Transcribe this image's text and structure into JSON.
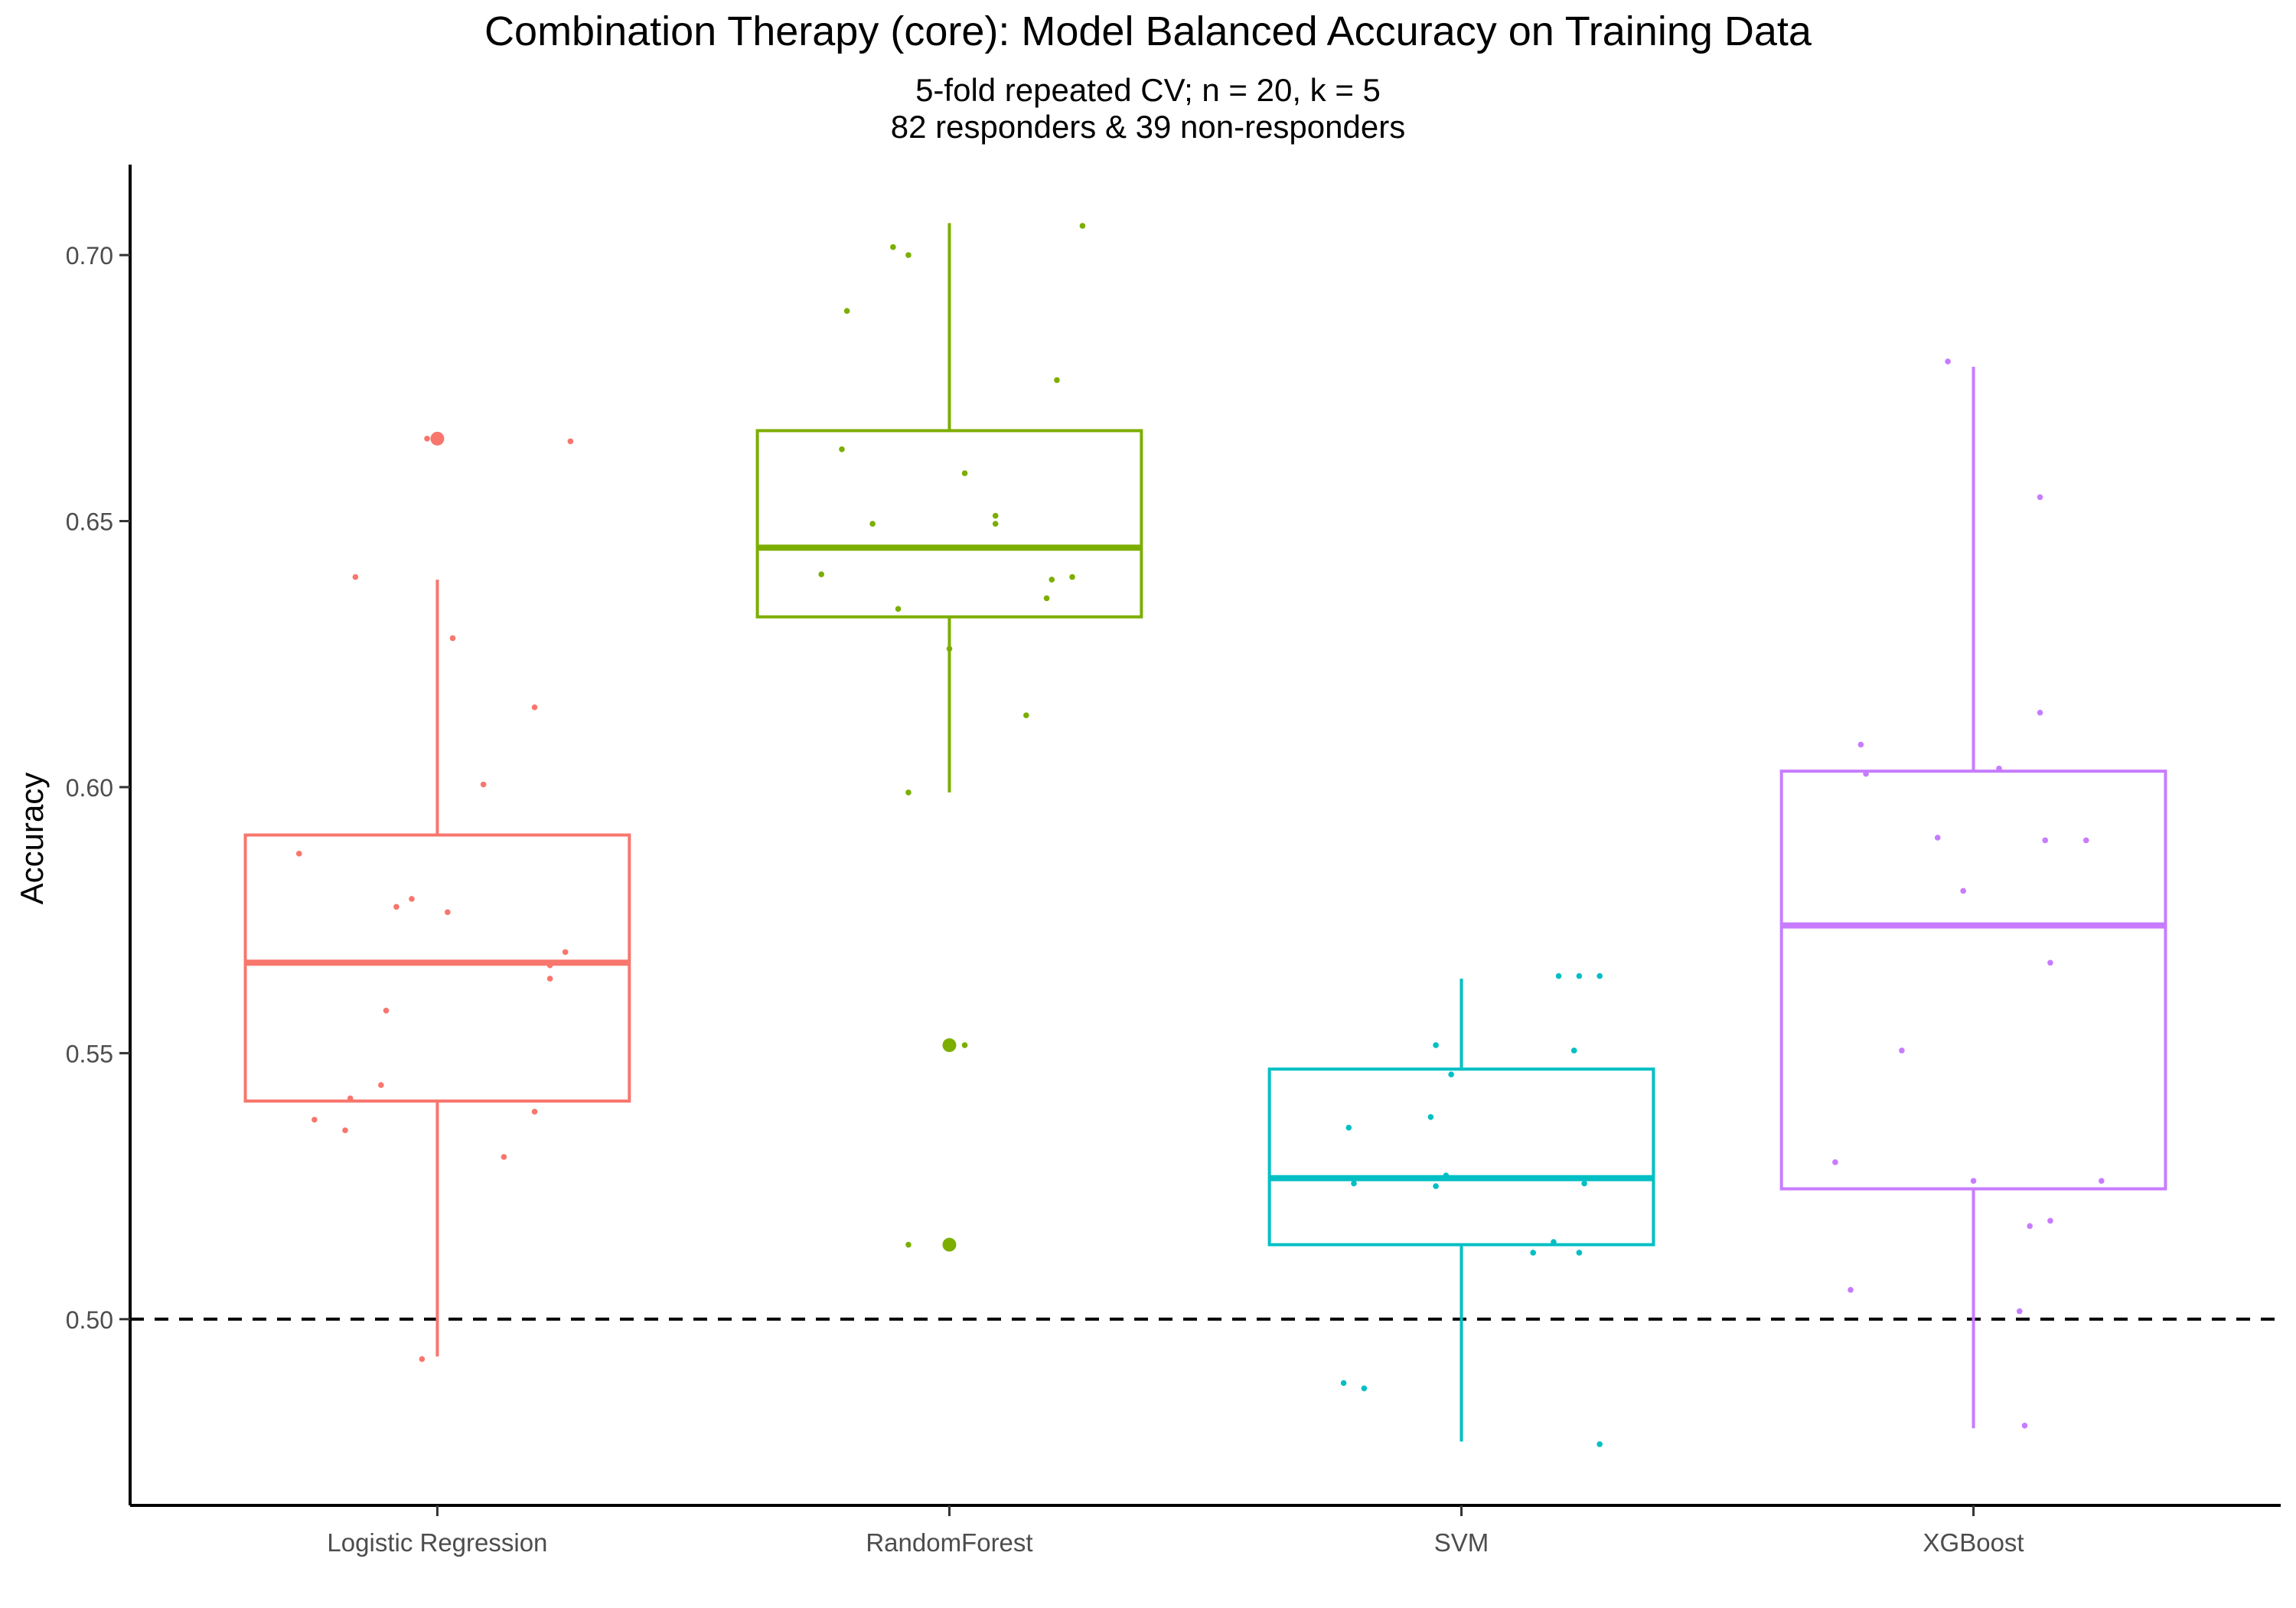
{
  "chart_data": {
    "type": "box",
    "title": "Combination Therapy (core): Model Balanced Accuracy on Training Data",
    "subtitle_lines": [
      "5-fold repeated CV; n = 20, k = 5",
      "82 responders & 39 non-responders"
    ],
    "xlabel": "",
    "ylabel": "Accuracy",
    "ylim": [
      0.465,
      0.717
    ],
    "yticks": [
      0.5,
      0.55,
      0.6,
      0.65,
      0.7
    ],
    "ytick_labels": [
      "0.50",
      "0.55",
      "0.60",
      "0.65",
      "0.70"
    ],
    "reference_line": {
      "y": 0.5,
      "style": "dashed",
      "color": "#000000"
    },
    "grid": false,
    "legend": "none",
    "categories": [
      "Logistic Regression",
      "RandomForest",
      "SVM",
      "XGBoost"
    ],
    "series": [
      {
        "category": "Logistic Regression",
        "color": "#F8766D",
        "box": {
          "whisker_low": 0.493,
          "q1": 0.541,
          "median": 0.567,
          "q3": 0.591,
          "whisker_high": 0.639
        },
        "outliers": [
          0.6655
        ],
        "points": [
          {
            "jitter": -0.02,
            "y": 0.6655
          },
          {
            "jitter": 0.26,
            "y": 0.665
          },
          {
            "jitter": -0.16,
            "y": 0.6395
          },
          {
            "jitter": 0.03,
            "y": 0.628
          },
          {
            "jitter": 0.19,
            "y": 0.615
          },
          {
            "jitter": 0.09,
            "y": 0.6005
          },
          {
            "jitter": -0.27,
            "y": 0.5875
          },
          {
            "jitter": -0.05,
            "y": 0.579
          },
          {
            "jitter": -0.08,
            "y": 0.5775
          },
          {
            "jitter": 0.02,
            "y": 0.5765
          },
          {
            "jitter": 0.25,
            "y": 0.569
          },
          {
            "jitter": 0.22,
            "y": 0.5665
          },
          {
            "jitter": 0.22,
            "y": 0.564
          },
          {
            "jitter": -0.1,
            "y": 0.558
          },
          {
            "jitter": -0.11,
            "y": 0.544
          },
          {
            "jitter": -0.17,
            "y": 0.5415
          },
          {
            "jitter": 0.19,
            "y": 0.539
          },
          {
            "jitter": -0.24,
            "y": 0.5375
          },
          {
            "jitter": -0.18,
            "y": 0.5355
          },
          {
            "jitter": 0.13,
            "y": 0.5305
          },
          {
            "jitter": -0.03,
            "y": 0.4925
          }
        ]
      },
      {
        "category": "RandomForest",
        "color": "#7CAE00",
        "box": {
          "whisker_low": 0.599,
          "q1": 0.632,
          "median": 0.645,
          "q3": 0.667,
          "whisker_high": 0.706
        },
        "outliers": [
          0.5515,
          0.514
        ],
        "points": [
          {
            "jitter": 0.26,
            "y": 0.7055
          },
          {
            "jitter": -0.11,
            "y": 0.7015
          },
          {
            "jitter": -0.08,
            "y": 0.7
          },
          {
            "jitter": -0.2,
            "y": 0.6895
          },
          {
            "jitter": 0.21,
            "y": 0.6765
          },
          {
            "jitter": -0.21,
            "y": 0.6635
          },
          {
            "jitter": 0.03,
            "y": 0.659
          },
          {
            "jitter": 0.09,
            "y": 0.651
          },
          {
            "jitter": 0.09,
            "y": 0.6495
          },
          {
            "jitter": -0.15,
            "y": 0.6495
          },
          {
            "jitter": -0.25,
            "y": 0.64
          },
          {
            "jitter": 0.24,
            "y": 0.6395
          },
          {
            "jitter": 0.2,
            "y": 0.639
          },
          {
            "jitter": 0.19,
            "y": 0.6355
          },
          {
            "jitter": -0.1,
            "y": 0.6335
          },
          {
            "jitter": 0.0,
            "y": 0.626
          },
          {
            "jitter": 0.15,
            "y": 0.6135
          },
          {
            "jitter": -0.08,
            "y": 0.599
          },
          {
            "jitter": 0.03,
            "y": 0.5515
          },
          {
            "jitter": 0.0,
            "y": 0.5515
          },
          {
            "jitter": -0.08,
            "y": 0.514
          },
          {
            "jitter": 0.0,
            "y": 0.514
          }
        ]
      },
      {
        "category": "SVM",
        "color": "#00BFC4",
        "box": {
          "whisker_low": 0.477,
          "q1": 0.514,
          "median": 0.5265,
          "q3": 0.547,
          "whisker_high": 0.564
        },
        "outliers": [],
        "points": [
          {
            "jitter": 0.19,
            "y": 0.5645
          },
          {
            "jitter": 0.23,
            "y": 0.5645
          },
          {
            "jitter": 0.27,
            "y": 0.5645
          },
          {
            "jitter": -0.05,
            "y": 0.5515
          },
          {
            "jitter": 0.22,
            "y": 0.5505
          },
          {
            "jitter": -0.02,
            "y": 0.546
          },
          {
            "jitter": -0.06,
            "y": 0.538
          },
          {
            "jitter": -0.22,
            "y": 0.536
          },
          {
            "jitter": -0.03,
            "y": 0.527
          },
          {
            "jitter": 0.15,
            "y": 0.5265
          },
          {
            "jitter": -0.21,
            "y": 0.5255
          },
          {
            "jitter": -0.05,
            "y": 0.525
          },
          {
            "jitter": 0.24,
            "y": 0.5255
          },
          {
            "jitter": 0.18,
            "y": 0.5145
          },
          {
            "jitter": 0.14,
            "y": 0.5125
          },
          {
            "jitter": 0.23,
            "y": 0.5125
          },
          {
            "jitter": -0.23,
            "y": 0.488
          },
          {
            "jitter": -0.19,
            "y": 0.487
          },
          {
            "jitter": 0.27,
            "y": 0.4765
          }
        ]
      },
      {
        "category": "XGBoost",
        "color": "#C77CFF",
        "box": {
          "whisker_low": 0.4795,
          "q1": 0.5245,
          "median": 0.574,
          "q3": 0.603,
          "whisker_high": 0.679
        },
        "outliers": [],
        "points": [
          {
            "jitter": -0.05,
            "y": 0.68
          },
          {
            "jitter": 0.13,
            "y": 0.6545
          },
          {
            "jitter": 0.13,
            "y": 0.614
          },
          {
            "jitter": -0.22,
            "y": 0.608
          },
          {
            "jitter": 0.05,
            "y": 0.6035
          },
          {
            "jitter": -0.21,
            "y": 0.6025
          },
          {
            "jitter": -0.07,
            "y": 0.5905
          },
          {
            "jitter": 0.14,
            "y": 0.59
          },
          {
            "jitter": 0.22,
            "y": 0.59
          },
          {
            "jitter": -0.02,
            "y": 0.5805
          },
          {
            "jitter": 0.15,
            "y": 0.567
          },
          {
            "jitter": -0.14,
            "y": 0.5505
          },
          {
            "jitter": -0.27,
            "y": 0.5295
          },
          {
            "jitter": 0.0,
            "y": 0.526
          },
          {
            "jitter": 0.25,
            "y": 0.526
          },
          {
            "jitter": 0.15,
            "y": 0.5185
          },
          {
            "jitter": 0.11,
            "y": 0.5175
          },
          {
            "jitter": -0.24,
            "y": 0.5055
          },
          {
            "jitter": 0.09,
            "y": 0.5015
          },
          {
            "jitter": 0.1,
            "y": 0.48
          }
        ]
      }
    ]
  }
}
